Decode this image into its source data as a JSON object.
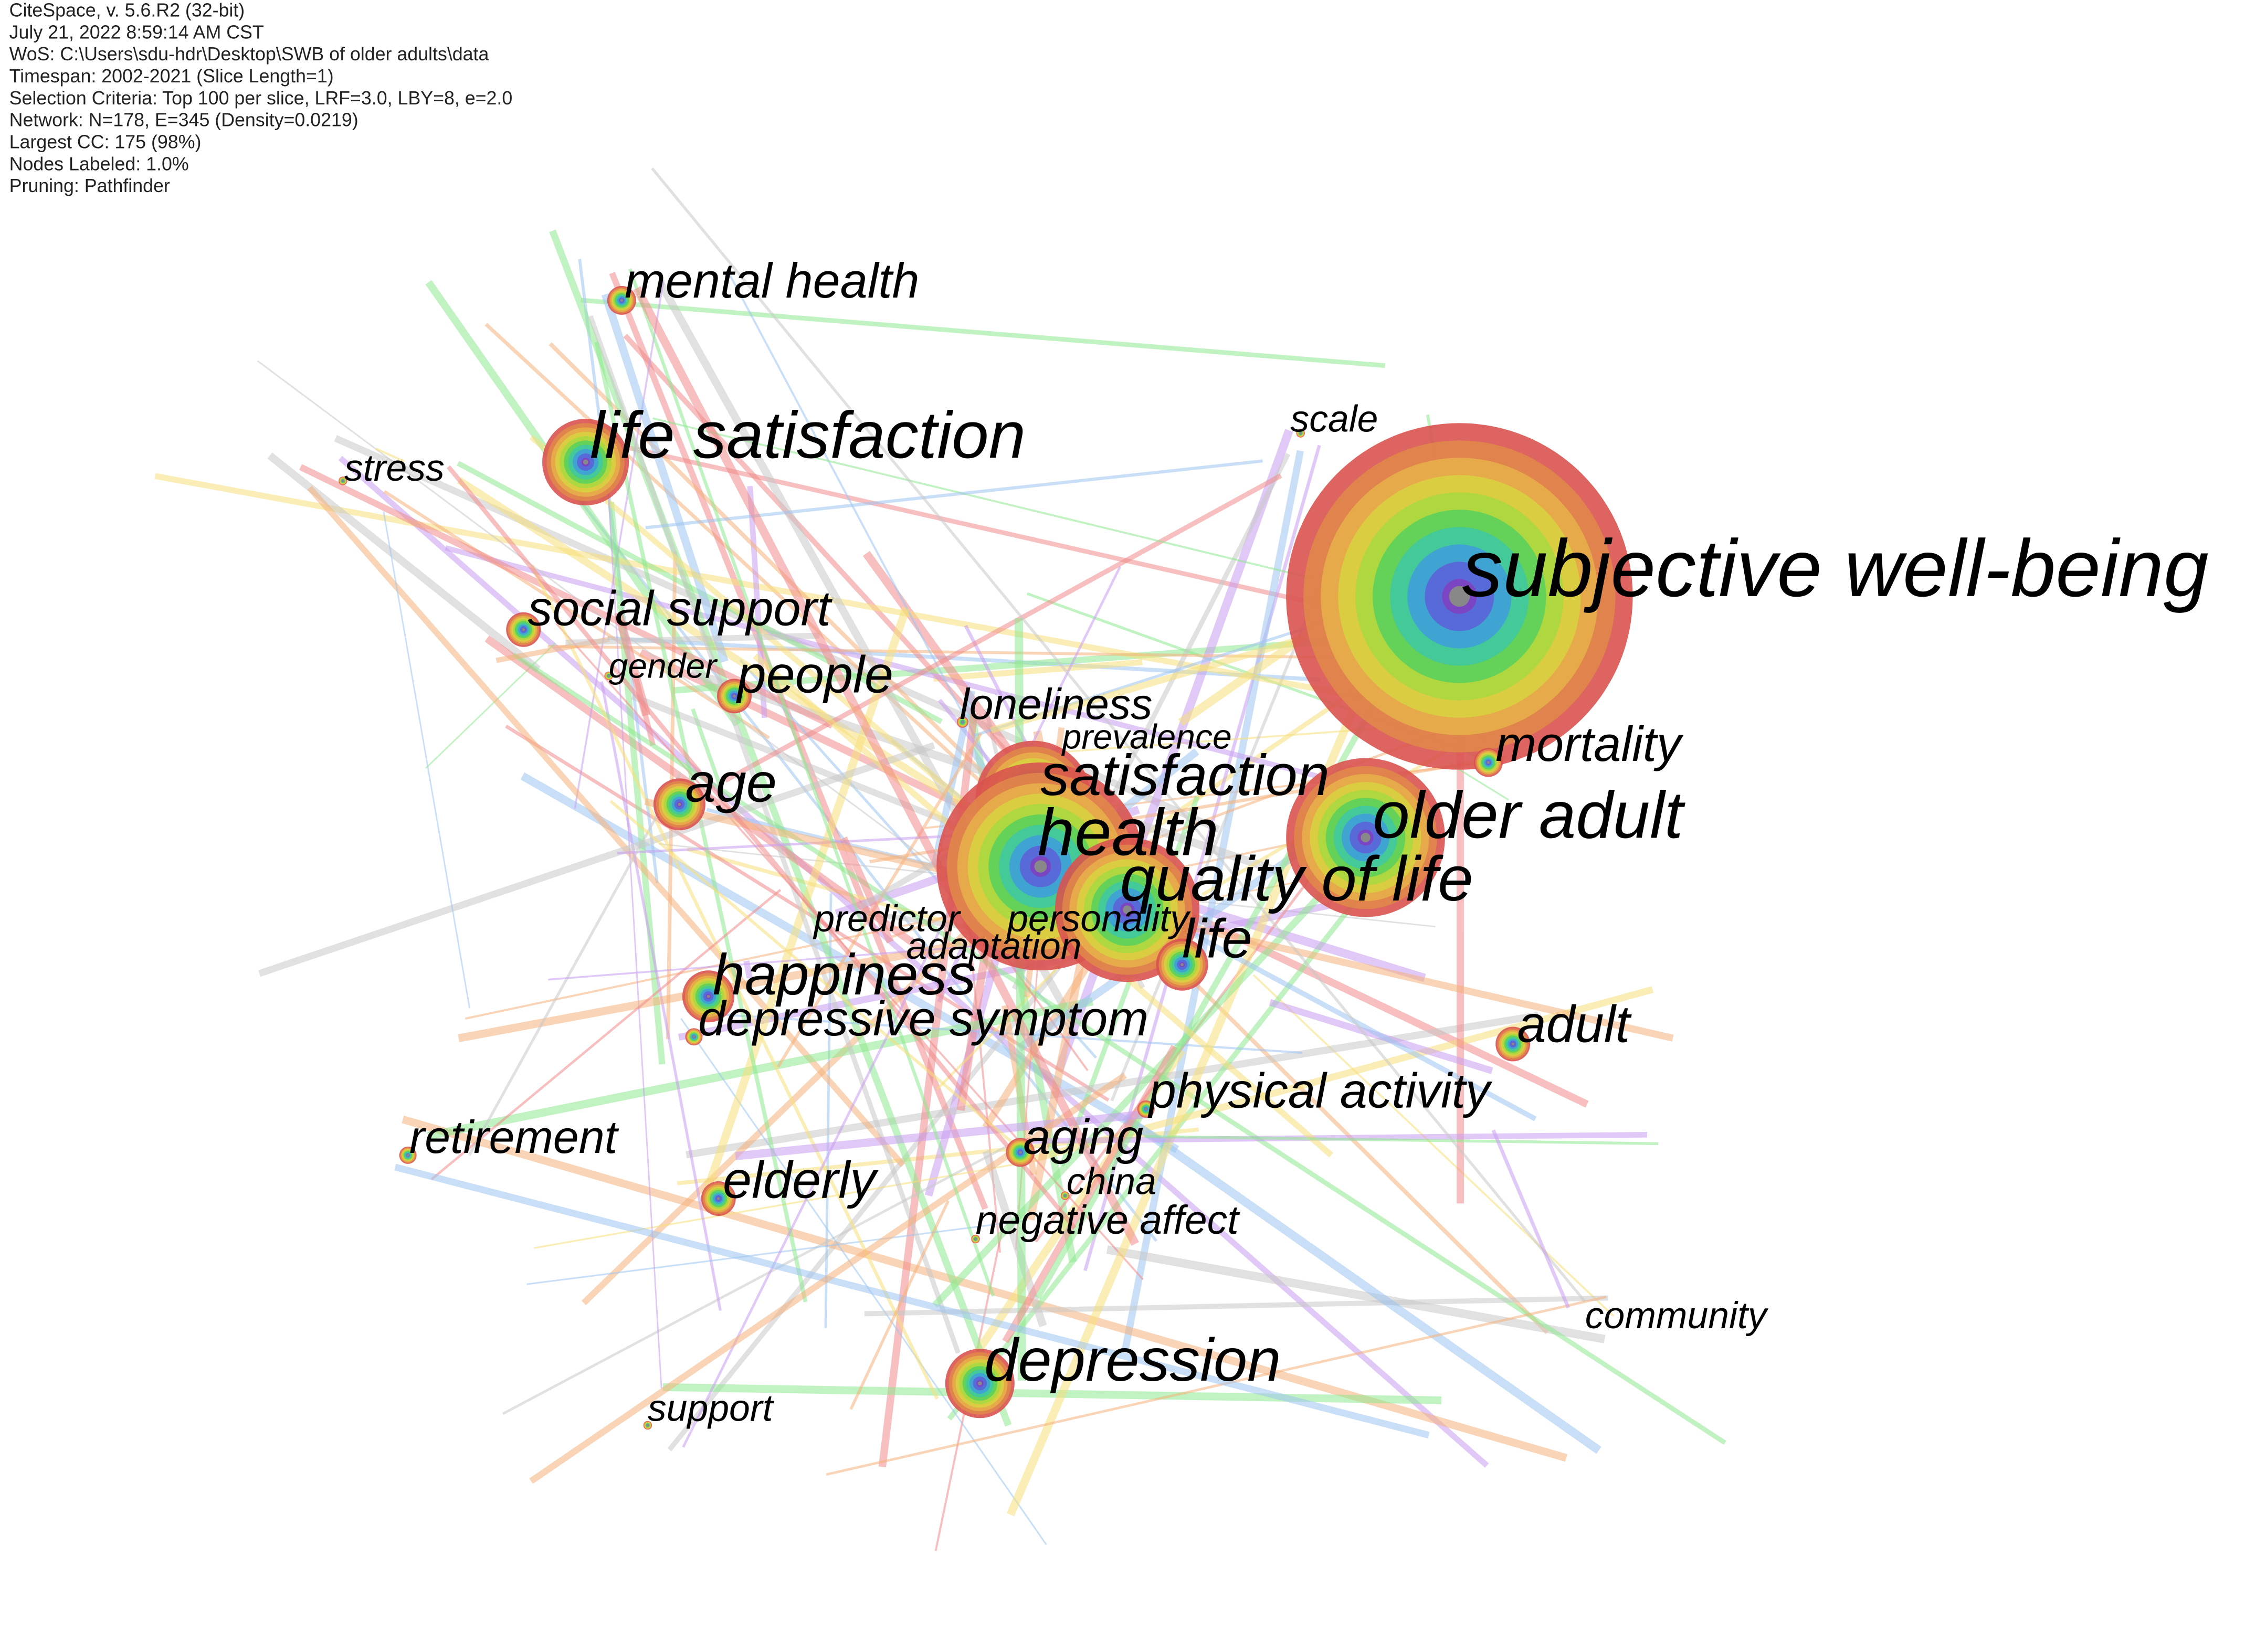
{
  "header": {
    "lines": [
      "CiteSpace, v. 5.6.R2 (32-bit)",
      "July 21, 2022 8:59:14 AM CST",
      "WoS: C:\\Users\\sdu-hdr\\Desktop\\SWB of older adults\\data",
      "Timespan: 2002-2021 (Slice Length=1)",
      "Selection Criteria: Top 100 per slice, LRF=3.0, LBY=8, e=2.0",
      "Network: N=178, E=345 (Density=0.0219)",
      "Largest CC: 175 (98%)",
      "Nodes Labeled: 1.0%",
      "Pruning: Pathfinder"
    ]
  },
  "nodes": [
    {
      "label": "mental health"
    },
    {
      "label": "life satisfaction"
    },
    {
      "label": "stress"
    },
    {
      "label": "social support"
    },
    {
      "label": "gender"
    },
    {
      "label": "people"
    },
    {
      "label": "age"
    },
    {
      "label": "loneliness"
    },
    {
      "label": "prevalence"
    },
    {
      "label": "satisfaction"
    },
    {
      "label": "health"
    },
    {
      "label": "quality of life"
    },
    {
      "label": "older adult"
    },
    {
      "label": "subjective well-being"
    },
    {
      "label": "scale"
    },
    {
      "label": "mortality"
    },
    {
      "label": "predictor"
    },
    {
      "label": "personality"
    },
    {
      "label": "adaptation"
    },
    {
      "label": "life"
    },
    {
      "label": "happiness"
    },
    {
      "label": "depressive symptom"
    },
    {
      "label": "adult"
    },
    {
      "label": "physical activity"
    },
    {
      "label": "retirement"
    },
    {
      "label": "aging"
    },
    {
      "label": "china"
    },
    {
      "label": "elderly"
    },
    {
      "label": "negative affect"
    },
    {
      "label": "community"
    },
    {
      "label": "depression"
    },
    {
      "label": "support"
    }
  ]
}
